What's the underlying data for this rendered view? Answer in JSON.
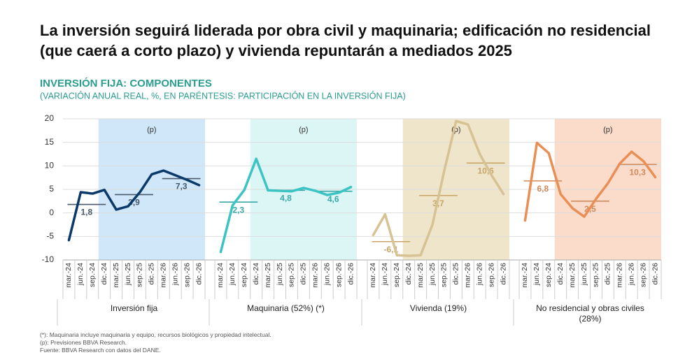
{
  "title": "La inversión seguirá liderada por obra civil y maquinaria; edificación no residencial (que caerá a corto plazo) y vivienda repuntarán a mediados 2025",
  "chart_title": "INVERSIÓN FIJA: COMPONENTES",
  "chart_subtitle": "(VARIACIÓN ANUAL REAL, %, EN PARÉNTESIS: PARTICIPACIÓN EN LA INVERSIÓN FIJA)",
  "notes": [
    "(*): Maquinaria incluye maquinaria y equipo, recursos biológicos y propiedad intelectual.",
    "(p): Previsiones BBVA Research.",
    "Fuente: BBVA Research con datos del DANE."
  ],
  "chart_data": [
    {
      "type": "line",
      "label": "Inversión fija",
      "categories": [
        "mar.-24",
        "jun.-24",
        "sep.-24",
        "dic.-24",
        "mar.-25",
        "jun.-25",
        "sep.-25",
        "dic.-25",
        "mar.-26",
        "jun.-26",
        "sep.-26",
        "dic.-26"
      ],
      "values": [
        -5.8,
        4.4,
        4.1,
        4.9,
        0.7,
        1.4,
        4.4,
        8.2,
        9.0,
        8.0,
        7.0,
        5.9
      ],
      "color": "#0b3a6a",
      "averages": {
        "values": [
          1.8,
          3.9,
          7.3
        ],
        "value_labels": [
          "1,8",
          "3,9",
          "7,3"
        ],
        "color": "#4a5a6a"
      },
      "forecast": {
        "label": "(p)",
        "from": "dic.-24",
        "color": "#cfe7f8"
      },
      "ylim": [
        -10,
        20
      ],
      "yticks": [
        -10,
        -5,
        0,
        5,
        10,
        15,
        20
      ]
    },
    {
      "type": "line",
      "label": "Maquinaria (52%) (*)",
      "categories": [
        "mar.-24",
        "jun.-24",
        "sep.-24",
        "dic.-24",
        "mar.-25",
        "jun.-25",
        "sep.-25",
        "dic.-25",
        "mar.-26",
        "jun.-26",
        "sep.-26",
        "dic.-26"
      ],
      "values": [
        -8.3,
        1.6,
        4.9,
        11.5,
        4.8,
        4.7,
        4.6,
        5.3,
        4.7,
        3.8,
        4.3,
        5.5
      ],
      "color": "#3cc3c3",
      "averages": {
        "values": [
          2.3,
          4.8,
          4.6
        ],
        "value_labels": [
          "2,3",
          "4,8",
          "4,6"
        ],
        "color": "#3aa9a9"
      },
      "forecast": {
        "label": "(p)",
        "from": "dic.-24",
        "color": "#dcf5f5"
      },
      "ylim": [
        -10,
        20
      ]
    },
    {
      "type": "line",
      "label": "Vivienda (19%)",
      "categories": [
        "mar.-24",
        "jun.-24",
        "sep.-24",
        "dic.-24",
        "mar.-25",
        "jun.-25",
        "sep.-25",
        "dic.-25",
        "mar.-26",
        "jun.-26",
        "sep.-26",
        "dic.-26"
      ],
      "values": [
        -4.7,
        -0.3,
        -9.0,
        -9.1,
        -9.0,
        -2.5,
        9.0,
        19.5,
        18.8,
        12.5,
        8.0,
        4.0
      ],
      "color": "#d6c292",
      "averages": {
        "values": [
          -6.1,
          3.7,
          10.6
        ],
        "value_labels": [
          "-6,1",
          "3,7",
          "10,6"
        ],
        "color": "#c9a567"
      },
      "forecast": {
        "label": "(p)",
        "from": "dic.-24",
        "color": "#efe5cb"
      },
      "ylim": [
        -10,
        20
      ]
    },
    {
      "type": "line",
      "label": "No residencial y obras civiles (28%)",
      "categories": [
        "mar.-24",
        "jun.-24",
        "sep.-24",
        "dic.-24",
        "mar.-25",
        "jun.-25",
        "sep.-25",
        "dic.-25",
        "mar.-26",
        "jun.-26",
        "sep.-26",
        "dic.-26"
      ],
      "values": [
        -1.6,
        14.9,
        12.7,
        4.0,
        1.0,
        -0.8,
        3.0,
        6.3,
        10.5,
        13.0,
        11.0,
        7.6
      ],
      "color": "#e98f55",
      "averages": {
        "values": [
          6.8,
          2.5,
          10.3
        ],
        "value_labels": [
          "6,8",
          "2,5",
          "10,3"
        ],
        "color": "#cf8a5c"
      },
      "forecast": {
        "label": "(p)",
        "from": "dic.-24",
        "color": "#fbdccb"
      },
      "ylim": [
        -10,
        20
      ]
    }
  ]
}
